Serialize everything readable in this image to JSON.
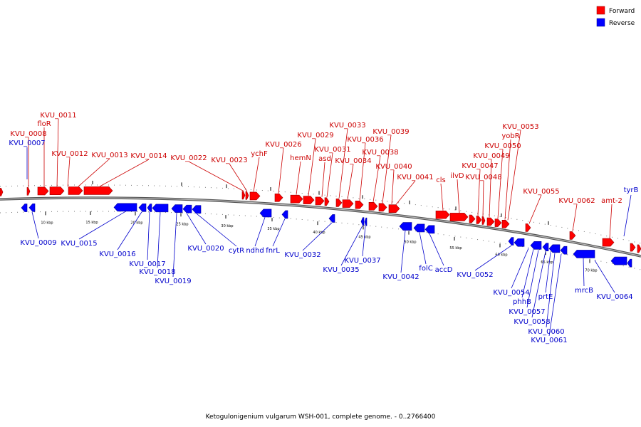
{
  "legend": [
    {
      "label": "Forward",
      "color": "#ff0000"
    },
    {
      "label": "Reverse",
      "color": "#0000ff"
    }
  ],
  "colors": {
    "forward": "#ff0000",
    "forward_label": "#cc0000",
    "reverse": "#0000ff",
    "reverse_label": "#0000cc",
    "backbone": "#888888"
  },
  "caption": "Ketogulonigenium vulgarum WSH-001, complete genome. - 0..2766400",
  "scale": {
    "ticks": [
      "10 kbp",
      "15 kbp",
      "20 kbp",
      "25 kbp",
      "30 kbp",
      "35 kbp",
      "40 kbp",
      "45 kbp",
      "50 kbp",
      "55 kbp",
      "60 kbp",
      "65 kbp",
      "70 kbp"
    ]
  },
  "genes_forward": [
    {
      "label": "KVU_0008"
    },
    {
      "label": "floR"
    },
    {
      "label": "KVU_0011"
    },
    {
      "label": "KVU_0012"
    },
    {
      "label": "KVU_0013"
    },
    {
      "label": "KVU_0014"
    },
    {
      "label": "KVU_0022"
    },
    {
      "label": "KVU_0023"
    },
    {
      "label": "ychF"
    },
    {
      "label": "KVU_0026"
    },
    {
      "label": "hemN"
    },
    {
      "label": "KVU_0029"
    },
    {
      "label": "asd"
    },
    {
      "label": "KVU_0031"
    },
    {
      "label": "KVU_0033"
    },
    {
      "label": "KVU_0034"
    },
    {
      "label": "KVU_0036"
    },
    {
      "label": "KVU_0038"
    },
    {
      "label": "KVU_0039"
    },
    {
      "label": "KVU_0040"
    },
    {
      "label": "KVU_0041"
    },
    {
      "label": "cls"
    },
    {
      "label": "ilvD"
    },
    {
      "label": "KVU_0047"
    },
    {
      "label": "KVU_0048"
    },
    {
      "label": "KVU_0049"
    },
    {
      "label": "KVU_0050"
    },
    {
      "label": "yobR"
    },
    {
      "label": "KVU_0053"
    },
    {
      "label": "KVU_0055"
    },
    {
      "label": "KVU_0062"
    },
    {
      "label": "amt-2"
    }
  ],
  "genes_reverse": [
    {
      "label": "KVU_0007"
    },
    {
      "label": "KVU_0009"
    },
    {
      "label": "KVU_0015"
    },
    {
      "label": "KVU_0016"
    },
    {
      "label": "KVU_0017"
    },
    {
      "label": "KVU_0018"
    },
    {
      "label": "KVU_0019"
    },
    {
      "label": "KVU_0020"
    },
    {
      "label": "cytR"
    },
    {
      "label": "ndhd"
    },
    {
      "label": "fnrL"
    },
    {
      "label": "KVU_0032"
    },
    {
      "label": "KVU_0035"
    },
    {
      "label": "KVU_0037"
    },
    {
      "label": "KVU_0042"
    },
    {
      "label": "folC"
    },
    {
      "label": "accD"
    },
    {
      "label": "KVU_0052"
    },
    {
      "label": "KVU_0054"
    },
    {
      "label": "phhB"
    },
    {
      "label": "KVU_0057"
    },
    {
      "label": "KVU_0058"
    },
    {
      "label": "prtE"
    },
    {
      "label": "KVU_0060"
    },
    {
      "label": "KVU_0061"
    },
    {
      "label": "mrcB"
    },
    {
      "label": "KVU_0064"
    },
    {
      "label": "tyrB"
    }
  ]
}
